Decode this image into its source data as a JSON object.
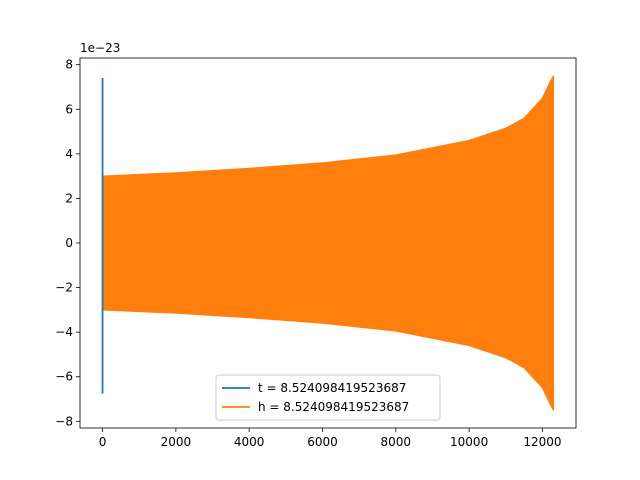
{
  "chart_data": {
    "type": "line",
    "title": "",
    "xlabel": "",
    "ylabel": "",
    "offset_text": "1e−23",
    "xlim": [
      -615,
      12915
    ],
    "ylim": [
      -8.3,
      8.3
    ],
    "x_ticks": [
      0,
      2000,
      4000,
      6000,
      8000,
      10000,
      12000
    ],
    "x_tick_labels": [
      "0",
      "2000",
      "4000",
      "6000",
      "8000",
      "10000",
      "12000"
    ],
    "y_ticks": [
      -8,
      -6,
      -4,
      -2,
      0,
      2,
      4,
      6,
      8
    ],
    "y_tick_labels": [
      "−8",
      "−6",
      "−4",
      "−2",
      "0",
      "2",
      "4",
      "6",
      "8"
    ],
    "grid": false,
    "legend_position": "lower center",
    "series": [
      {
        "name": "t = 8.524098419523687",
        "color": "#1f77b4",
        "x_range": [
          0,
          5
        ],
        "y_range": [
          -6.75,
          7.4
        ]
      },
      {
        "name": "h = 8.524098419523687",
        "color": "#ff7f0e",
        "x_range": [
          0,
          12300
        ],
        "envelope": {
          "x": [
            0,
            2000,
            4000,
            6000,
            8000,
            10000,
            11000,
            11500,
            12000,
            12200,
            12300
          ],
          "amplitude": [
            3.0,
            3.15,
            3.35,
            3.6,
            3.95,
            4.6,
            5.15,
            5.6,
            6.5,
            7.2,
            7.5
          ]
        }
      }
    ]
  }
}
